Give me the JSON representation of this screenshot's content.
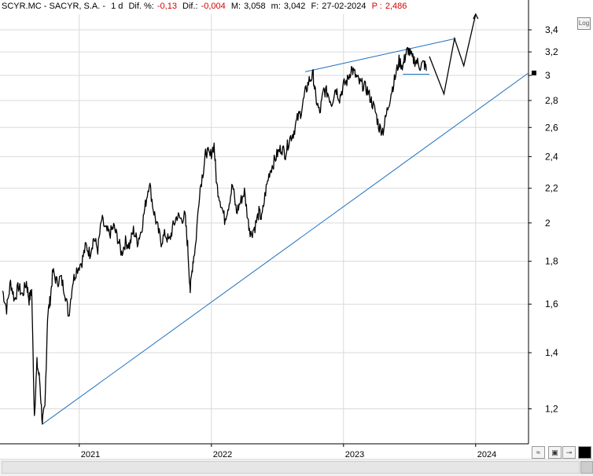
{
  "header": {
    "ticker": "SCYR.MC - SACYR, S.A. -",
    "period": "1 d",
    "dif_pct_label": "Dif. %:",
    "dif_pct_value": "-0,13",
    "dif_label": "Dif.:",
    "dif_value": "-0,004",
    "max_label": "M:",
    "max_value": "3,058",
    "min_label": "m:",
    "min_value": "3,042",
    "date_label": "F:",
    "date_value": "27-02-2024",
    "p_label": "P :",
    "p_value": "2,486"
  },
  "log_button_label": "Log",
  "colors": {
    "price": "#000000",
    "trendline": "#1f6fbf",
    "grid": "#d9d9d9",
    "negative": "#d40000"
  },
  "chart_data": {
    "type": "line",
    "scale": "log",
    "y_ticks": [
      "3,4",
      "3,2",
      "3",
      "2,8",
      "2,6",
      "2,4",
      "2,2",
      "2",
      "1,8",
      "1,6",
      "1,4",
      "1,2"
    ],
    "y_tick_values": [
      3.4,
      3.2,
      3.0,
      2.8,
      2.6,
      2.4,
      2.2,
      2.0,
      1.8,
      1.6,
      1.4,
      1.2
    ],
    "x_ticks": [
      "2021",
      "2022",
      "2023",
      "2024"
    ],
    "x_tick_values": [
      2021.0,
      2022.0,
      2023.0,
      2024.0
    ],
    "xlim": [
      2020.4,
      2024.4
    ],
    "ylim": [
      1.09,
      3.55
    ],
    "grid": true,
    "last_price_marker": 3.02,
    "series": [
      {
        "values": [
          [
            2020.42,
            1.66
          ],
          [
            2020.45,
            1.58
          ],
          [
            2020.48,
            1.7
          ],
          [
            2020.51,
            1.62
          ],
          [
            2020.54,
            1.68
          ],
          [
            2020.57,
            1.64
          ],
          [
            2020.6,
            1.7
          ],
          [
            2020.62,
            1.62
          ],
          [
            2020.64,
            1.66
          ],
          [
            2020.66,
            1.18
          ],
          [
            2020.68,
            1.36
          ],
          [
            2020.7,
            1.3
          ],
          [
            2020.72,
            1.16
          ],
          [
            2020.74,
            1.2
          ],
          [
            2020.76,
            1.55
          ],
          [
            2020.78,
            1.62
          ],
          [
            2020.8,
            1.75
          ],
          [
            2020.83,
            1.7
          ],
          [
            2020.86,
            1.72
          ],
          [
            2020.89,
            1.66
          ],
          [
            2020.92,
            1.55
          ],
          [
            2020.95,
            1.7
          ],
          [
            2020.98,
            1.76
          ],
          [
            2021.02,
            1.8
          ],
          [
            2021.05,
            1.88
          ],
          [
            2021.08,
            1.84
          ],
          [
            2021.11,
            1.92
          ],
          [
            2021.14,
            1.86
          ],
          [
            2021.17,
            2.02
          ],
          [
            2021.2,
            1.96
          ],
          [
            2021.23,
            1.94
          ],
          [
            2021.26,
            1.98
          ],
          [
            2021.29,
            1.92
          ],
          [
            2021.32,
            1.84
          ],
          [
            2021.35,
            1.9
          ],
          [
            2021.38,
            1.88
          ],
          [
            2021.41,
            1.96
          ],
          [
            2021.44,
            1.9
          ],
          [
            2021.47,
            1.96
          ],
          [
            2021.5,
            2.1
          ],
          [
            2021.53,
            2.24
          ],
          [
            2021.56,
            2.08
          ],
          [
            2021.59,
            1.98
          ],
          [
            2021.62,
            1.9
          ],
          [
            2021.65,
            1.94
          ],
          [
            2021.68,
            1.9
          ],
          [
            2021.71,
            1.98
          ],
          [
            2021.74,
            2.04
          ],
          [
            2021.77,
            2.02
          ],
          [
            2021.8,
            2.04
          ],
          [
            2021.82,
            1.88
          ],
          [
            2021.84,
            1.66
          ],
          [
            2021.86,
            1.8
          ],
          [
            2021.88,
            1.88
          ],
          [
            2021.91,
            2.18
          ],
          [
            2021.94,
            2.32
          ],
          [
            2021.96,
            2.44
          ],
          [
            2021.99,
            2.4
          ],
          [
            2022.02,
            2.48
          ],
          [
            2022.04,
            2.22
          ],
          [
            2022.07,
            2.12
          ],
          [
            2022.1,
            2.02
          ],
          [
            2022.13,
            2.1
          ],
          [
            2022.16,
            2.22
          ],
          [
            2022.19,
            2.06
          ],
          [
            2022.22,
            2.12
          ],
          [
            2022.25,
            2.18
          ],
          [
            2022.28,
            2.0
          ],
          [
            2022.3,
            1.94
          ],
          [
            2022.33,
            1.98
          ],
          [
            2022.36,
            2.06
          ],
          [
            2022.38,
            2.02
          ],
          [
            2022.41,
            2.18
          ],
          [
            2022.44,
            2.3
          ],
          [
            2022.47,
            2.36
          ],
          [
            2022.5,
            2.42
          ],
          [
            2022.53,
            2.46
          ],
          [
            2022.56,
            2.42
          ],
          [
            2022.59,
            2.52
          ],
          [
            2022.62,
            2.56
          ],
          [
            2022.65,
            2.66
          ],
          [
            2022.68,
            2.72
          ],
          [
            2022.71,
            2.86
          ],
          [
            2022.74,
            2.96
          ],
          [
            2022.77,
            3.0
          ],
          [
            2022.79,
            2.82
          ],
          [
            2022.82,
            2.7
          ],
          [
            2022.85,
            2.88
          ],
          [
            2022.88,
            2.86
          ],
          [
            2022.91,
            2.78
          ],
          [
            2022.94,
            2.9
          ],
          [
            2022.97,
            2.82
          ],
          [
            2023.0,
            2.92
          ],
          [
            2023.03,
            2.96
          ],
          [
            2023.06,
            3.06
          ],
          [
            2023.09,
            3.0
          ],
          [
            2023.12,
            2.94
          ],
          [
            2023.15,
            2.92
          ],
          [
            2023.18,
            2.88
          ],
          [
            2023.21,
            2.8
          ],
          [
            2023.24,
            2.72
          ],
          [
            2023.27,
            2.6
          ],
          [
            2023.3,
            2.58
          ],
          [
            2023.33,
            2.72
          ],
          [
            2023.36,
            2.86
          ],
          [
            2023.39,
            2.98
          ],
          [
            2023.42,
            3.12
          ],
          [
            2023.45,
            3.08
          ],
          [
            2023.47,
            3.18
          ],
          [
            2023.49,
            3.22
          ],
          [
            2023.52,
            3.14
          ],
          [
            2023.55,
            3.12
          ],
          [
            2023.58,
            3.08
          ],
          [
            2023.61,
            3.1
          ],
          [
            2023.63,
            3.04
          ]
        ]
      }
    ],
    "trendlines": [
      {
        "from": [
          2020.72,
          1.15
        ],
        "to": [
          2024.4,
          3.02
        ]
      },
      {
        "from": [
          2022.71,
          3.03
        ],
        "to": [
          2023.85,
          3.32
        ]
      },
      {
        "from": [
          2023.45,
          3.01
        ],
        "to": [
          2023.65,
          3.01
        ]
      }
    ],
    "projection": [
      [
        2023.65,
        3.16
      ],
      [
        2023.76,
        2.85
      ],
      [
        2023.84,
        3.32
      ],
      [
        2023.91,
        3.08
      ],
      [
        2024.0,
        3.55
      ]
    ]
  }
}
